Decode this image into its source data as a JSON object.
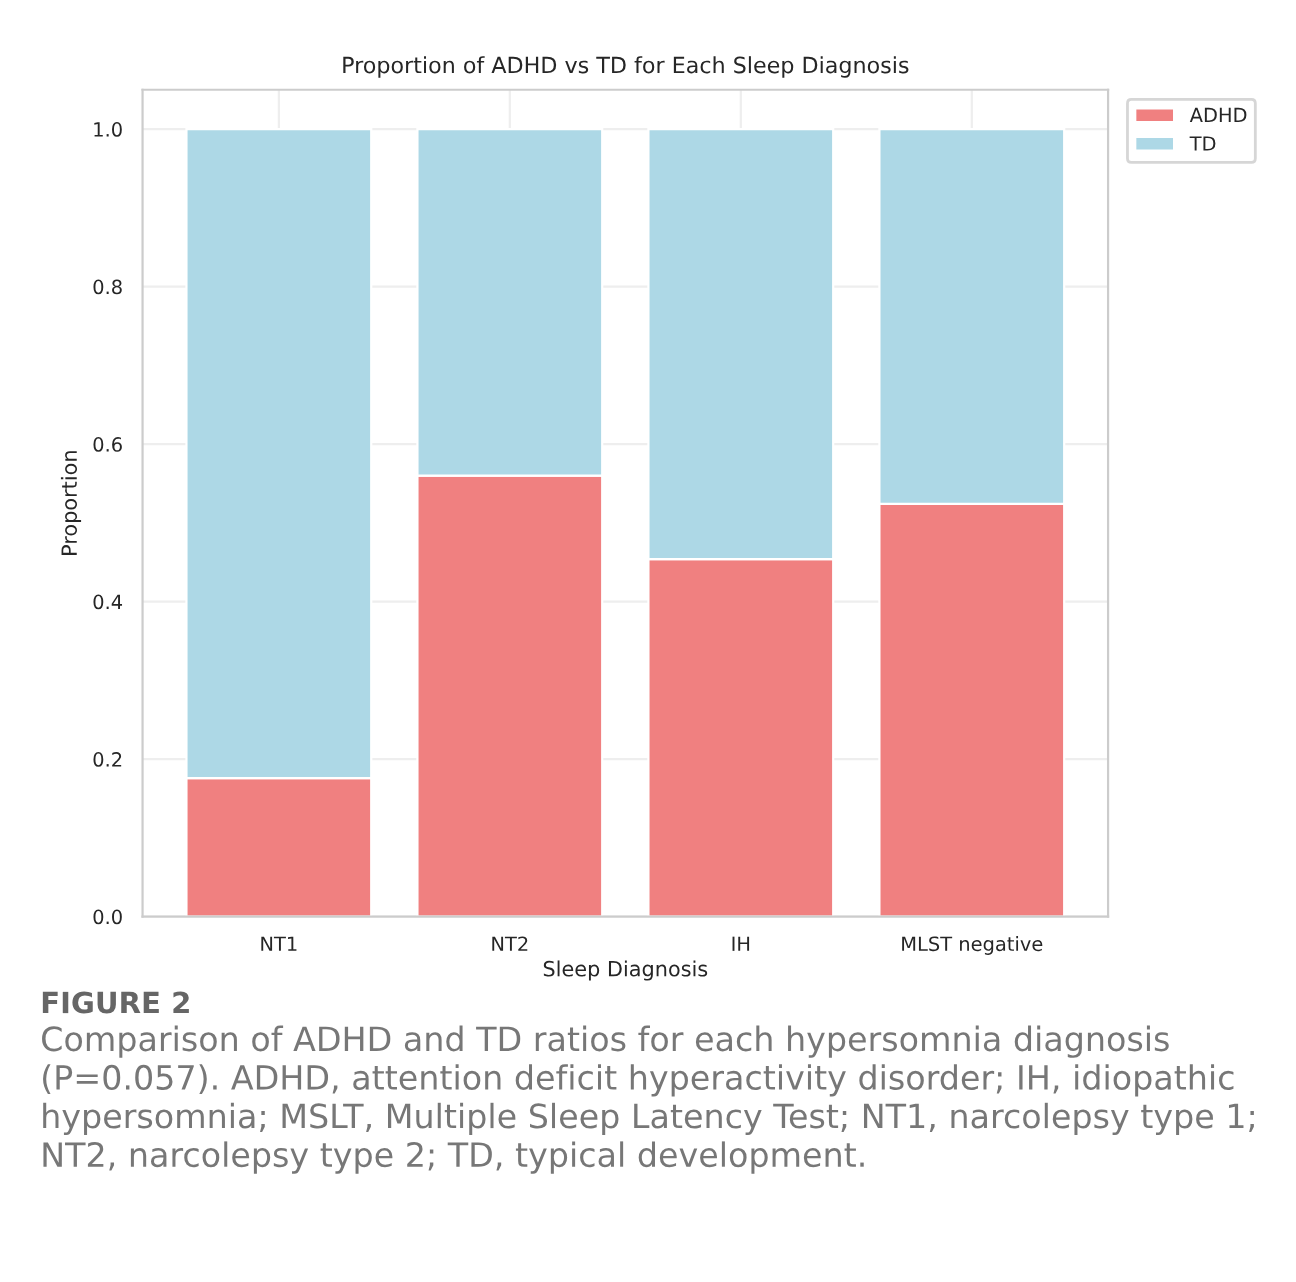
{
  "chart_data": {
    "type": "bar",
    "title": "Proportion of ADHD vs TD for Each Sleep Diagnosis",
    "xlabel": "Sleep Diagnosis",
    "ylabel": "Proportion",
    "categories": [
      "NT1",
      "NT2",
      "IH",
      "MLST negative"
    ],
    "series": [
      {
        "name": "ADHD",
        "color": "#f08080",
        "values": [
          0.176,
          0.56,
          0.454,
          0.524
        ]
      },
      {
        "name": "TD",
        "color": "#add8e6",
        "values": [
          0.824,
          0.44,
          0.546,
          0.476
        ]
      }
    ],
    "stacked": true,
    "ylim": [
      0,
      1.05
    ],
    "yticks": [
      {
        "value": 0,
        "label": "0.0"
      },
      0.2,
      0.4,
      0.6,
      0.8,
      {
        "value": 1,
        "label": "1.0"
      }
    ],
    "grid": true,
    "legend": "top right",
    "annotations": [
      "FIGURE 2",
      "Comparison of ADHD and TD ratios for each hypersomnia diagnosis (P=0.057). ADHD, attention deficit hyperactivity disorder; IH, idiopathic hypersomnia; MSLT, Multiple Sleep Latency Test; NT1, narcolepsy type 1; NT2, narcolepsy type 2; TD, typical development."
    ]
  }
}
